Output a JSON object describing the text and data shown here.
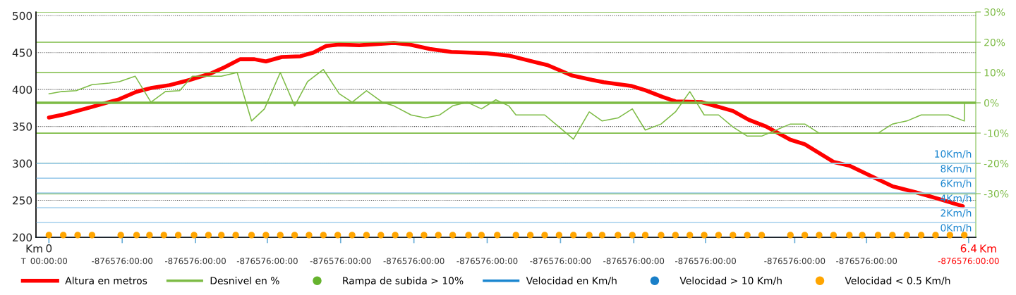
{
  "chart_data": {
    "type": "line",
    "xlim": [
      -0.09,
      6.45
    ],
    "xticks": [
      0,
      {
        "value": 0.51,
        "label": null
      },
      {
        "value": 1.02,
        "label": null
      },
      {
        "value": 1.52,
        "label": null
      },
      {
        "value": 2.03,
        "label": null
      },
      {
        "value": 2.54,
        "label": null
      },
      {
        "value": 3.05,
        "label": null
      },
      {
        "value": 3.56,
        "label": null
      },
      {
        "value": 4.07,
        "label": null
      },
      {
        "value": 4.57,
        "label": null
      },
      {
        "value": 5.19,
        "label": null
      },
      {
        "value": 5.69,
        "label": null
      },
      6.4
    ],
    "ylim": [
      200,
      505
    ],
    "yticks": [
      200,
      250,
      300,
      350,
      400,
      450,
      500
    ],
    "y2lim": [
      -44.4,
      30
    ],
    "y2ticks": [
      {
        "value": -30,
        "label": "-30%"
      },
      {
        "value": -20,
        "label": "-20%"
      },
      {
        "value": -10,
        "label": "-10%"
      },
      {
        "value": 0,
        "label": "0%"
      },
      {
        "value": 10,
        "label": "10%"
      },
      {
        "value": 20,
        "label": "20%"
      },
      {
        "value": 30,
        "label": "30%"
      }
    ],
    "y3lim": [
      0,
      30.5
    ],
    "y3ticks": [
      {
        "value": 0,
        "label": "0Km/h"
      },
      {
        "value": 2,
        "label": "2Km/h"
      },
      {
        "value": 4,
        "label": "4Km/h"
      },
      {
        "value": 6,
        "label": "6Km/h"
      },
      {
        "value": 8,
        "label": "8Km/h"
      },
      {
        "value": 10,
        "label": "10Km/h"
      }
    ],
    "grid": true,
    "ref_lines": [
      {
        "axis": "y2",
        "value": 0,
        "color": "#7dbb45"
      }
    ],
    "legend": "bottom",
    "annotations": [
      "Km",
      "Km",
      "T",
      "00:00:00",
      "-876576:00:00",
      "-876576:00:00",
      "-876576:00:00",
      "-876576:00:00",
      "-876576:00:00",
      "-876576:00:00",
      "-876576:00:00",
      "-876576:00:00",
      "-876576:00:00",
      "-876576:00:00",
      "-876576:00:00",
      "-876576:00:00"
    ],
    "series": [
      {
        "name": "Altura en metros",
        "color": "#ff0000",
        "x": [
          0,
          0.1,
          0.29,
          0.49,
          0.61,
          0.71,
          0.84,
          0.98,
          1.13,
          1.22,
          1.33,
          1.43,
          1.51,
          1.62,
          1.75,
          1.84,
          1.93,
          2.02,
          2.16,
          2.31,
          2.4,
          2.51,
          2.65,
          2.8,
          2.93,
          3.05,
          3.2,
          3.47,
          3.64,
          3.78,
          3.86,
          4.05,
          4.15,
          4.27,
          4.36,
          4.54,
          4.65,
          4.76,
          4.87,
          4.99,
          5.16,
          5.26,
          5.46,
          5.57,
          5.87,
          6.03,
          6.19,
          6.36
        ],
        "values": [
          362,
          366,
          376,
          387,
          397,
          402,
          406,
          413,
          422,
          430,
          441,
          441,
          438,
          444,
          445,
          450,
          459,
          461,
          460,
          462,
          463,
          461,
          455,
          451,
          450,
          449,
          446,
          433,
          419,
          413,
          410,
          405,
          399,
          390,
          384,
          383,
          377,
          371,
          359,
          350,
          332,
          326,
          302,
          297,
          269,
          261,
          252,
          242
        ]
      },
      {
        "name": "Desnivel en %",
        "axis": "y2",
        "color": "#7dbb45",
        "x": [
          0,
          0.09,
          0.19,
          0.3,
          0.42,
          0.49,
          0.6,
          0.71,
          0.81,
          0.91,
          0.998,
          1.11,
          1.2,
          1.31,
          1.41,
          1.5,
          1.61,
          1.71,
          1.8,
          1.91,
          2.02,
          2.11,
          2.21,
          2.32,
          2.4,
          2.52,
          2.62,
          2.72,
          2.81,
          2.91,
          3.01,
          3.11,
          3.2,
          3.25,
          3.45,
          3.55,
          3.65,
          3.76,
          3.85,
          3.96,
          4.06,
          4.15,
          4.26,
          4.36,
          4.46,
          4.56,
          4.66,
          4.76,
          4.86,
          4.96,
          5.06,
          5.16,
          5.26,
          5.36,
          5.77,
          5.87,
          5.97,
          6.07,
          6.26,
          6.37,
          6.372
        ],
        "values": [
          3.0,
          3.7,
          4,
          6,
          6.5,
          7,
          8.8,
          0.2,
          3.7,
          4,
          8.8,
          8.8,
          8.8,
          10,
          -6,
          -2,
          10,
          -1,
          7,
          11,
          3,
          0.2,
          4,
          0.2,
          -1,
          -4,
          -5,
          -4,
          -1,
          0.2,
          -2,
          1,
          -1,
          -4,
          -4,
          -8,
          -12,
          -3,
          -6,
          -5,
          -2,
          -9,
          -7,
          -3,
          3.7,
          -4,
          -4,
          -8,
          -11,
          -11,
          -9,
          -7,
          -7,
          -10,
          -10,
          -7,
          -6,
          -4,
          -4,
          -6,
          0
        ]
      },
      {
        "name": "Rampa de subida > 10%",
        "type": "scatter",
        "color": "#66b32e"
      },
      {
        "name": "Velocidad en Km/h",
        "axis": "y3",
        "color": "#1a86d0"
      },
      {
        "name": "Velocidad > 10 Km/h",
        "type": "scatter",
        "axis": "y3",
        "color": "#1a7fc8"
      },
      {
        "name": "Velocidad < 0.5 Km/h",
        "type": "scatter",
        "axis": "y3",
        "color": "#ffa500",
        "x": [
          0,
          0.1,
          0.2,
          0.3,
          0.5,
          0.61,
          0.7,
          0.8,
          0.9,
          1.01,
          1.11,
          1.2,
          1.3,
          1.41,
          1.51,
          1.61,
          1.71,
          1.81,
          1.91,
          2.01,
          2.11,
          2.21,
          2.31,
          2.41,
          2.51,
          2.61,
          2.71,
          2.81,
          2.92,
          3.01,
          3.12,
          3.25,
          3.35,
          3.45,
          3.55,
          3.65,
          3.76,
          3.85,
          3.96,
          4.06,
          4.15,
          4.26,
          4.36,
          4.46,
          4.56,
          4.66,
          4.76,
          4.86,
          4.96,
          5.16,
          5.26,
          5.36,
          5.46,
          5.57,
          5.66,
          5.77,
          5.87,
          5.97,
          6.07,
          6.17,
          6.27,
          6.37
        ],
        "values": [
          0.3,
          0.3,
          0.3,
          0.3,
          0.3,
          0.3,
          0.3,
          0.3,
          0.3,
          0.3,
          0.3,
          0.3,
          0.3,
          0.3,
          0.3,
          0.3,
          0.3,
          0.3,
          0.3,
          0.3,
          0.3,
          0.3,
          0.3,
          0.3,
          0.3,
          0.3,
          0.3,
          0.3,
          0.3,
          0.3,
          0.3,
          0.3,
          0.3,
          0.3,
          0.3,
          0.3,
          0.3,
          0.3,
          0.3,
          0.3,
          0.3,
          0.3,
          0.3,
          0.3,
          0.3,
          0.3,
          0.3,
          0.3,
          0.3,
          0.3,
          0.3,
          0.3,
          0.3,
          0.3,
          0.3,
          0.3,
          0.3,
          0.3,
          0.3,
          0.3,
          0.3,
          0.3
        ]
      }
    ]
  }
}
